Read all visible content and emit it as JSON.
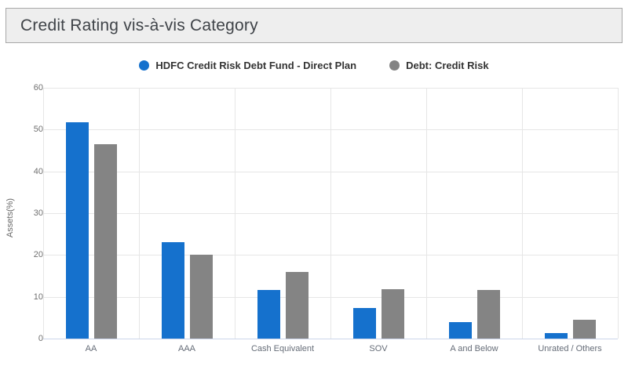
{
  "title": "Credit Rating vis-à-vis Category",
  "colors": {
    "series_blue": "#1571cd",
    "series_gray": "#848484",
    "gridline": "#e6e6e6",
    "axis_line": "#ccd6eb",
    "panel_bg": "#eeeeee",
    "panel_border": "#a8a8a8",
    "title_text": "#3f4348",
    "legend_text": "#333333",
    "tick_text": "#707070"
  },
  "chart_data": {
    "type": "bar",
    "title": "Credit Rating vis-à-vis Category",
    "categories": [
      "AA",
      "AAA",
      "Cash Equivalent",
      "SOV",
      "A and Below",
      "Unrated / Others"
    ],
    "series": [
      {
        "name": "HDFC Credit Risk Debt Fund - Direct Plan",
        "color": "#1571cd",
        "values": [
          51.7,
          23.0,
          11.6,
          7.4,
          3.9,
          1.4
        ]
      },
      {
        "name": "Debt: Credit Risk",
        "color": "#848484",
        "values": [
          46.5,
          20.0,
          15.9,
          11.8,
          11.6,
          4.6
        ]
      }
    ],
    "xlabel": "",
    "ylabel": "Assets(%)",
    "ylim": [
      0,
      60
    ],
    "ytick_step": 10,
    "yticks": [
      0,
      10,
      20,
      30,
      40,
      50,
      60
    ],
    "grid": true,
    "legend_position": "top-center"
  }
}
